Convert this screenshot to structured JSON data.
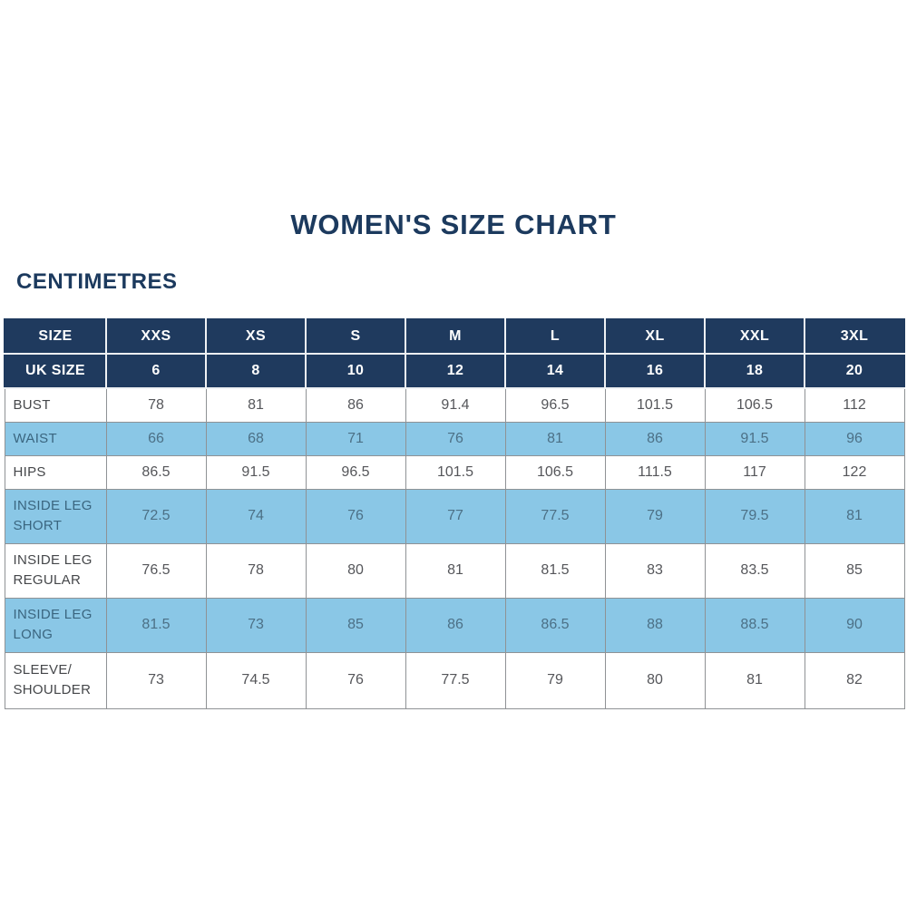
{
  "page": {
    "title": "WOMEN'S SIZE CHART",
    "unit_label": "CENTIMETRES"
  },
  "colors": {
    "navy": "#1f3a5e",
    "light_blue": "#8ac7e6",
    "border_gray": "#8f9295",
    "title_navy": "#1c3a5e",
    "body_text": "#55565a",
    "alt_row_text": "#4c7086"
  },
  "chart_data": {
    "type": "table",
    "title": "WOMEN'S SIZE CHART",
    "unit": "CENTIMETRES",
    "columns": [
      "SIZE",
      "XXS",
      "XS",
      "S",
      "M",
      "L",
      "XL",
      "XXL",
      "3XL"
    ],
    "uk_size_row": {
      "label": "UK SIZE",
      "values": [
        "6",
        "8",
        "10",
        "12",
        "14",
        "16",
        "18",
        "20"
      ]
    },
    "rows": [
      {
        "label": "BUST",
        "values": [
          "78",
          "81",
          "86",
          "91.4",
          "96.5",
          "101.5",
          "106.5",
          "112"
        ]
      },
      {
        "label": "WAIST",
        "values": [
          "66",
          "68",
          "71",
          "76",
          "81",
          "86",
          "91.5",
          "96"
        ]
      },
      {
        "label": "HIPS",
        "values": [
          "86.5",
          "91.5",
          "96.5",
          "101.5",
          "106.5",
          "111.5",
          "117",
          "122"
        ]
      },
      {
        "label": "INSIDE LEG\nSHORT",
        "values": [
          "72.5",
          "74",
          "76",
          "77",
          "77.5",
          "79",
          "79.5",
          "81"
        ]
      },
      {
        "label": "INSIDE LEG\nREGULAR",
        "values": [
          "76.5",
          "78",
          "80",
          "81",
          "81.5",
          "83",
          "83.5",
          "85"
        ]
      },
      {
        "label": "INSIDE LEG\nLONG",
        "values": [
          "81.5",
          "73",
          "85",
          "86",
          "86.5",
          "88",
          "88.5",
          "90"
        ]
      },
      {
        "label": "SLEEVE/\nSHOULDER",
        "values": [
          "73",
          "74.5",
          "76",
          "77.5",
          "79",
          "80",
          "81",
          "82"
        ]
      }
    ]
  }
}
